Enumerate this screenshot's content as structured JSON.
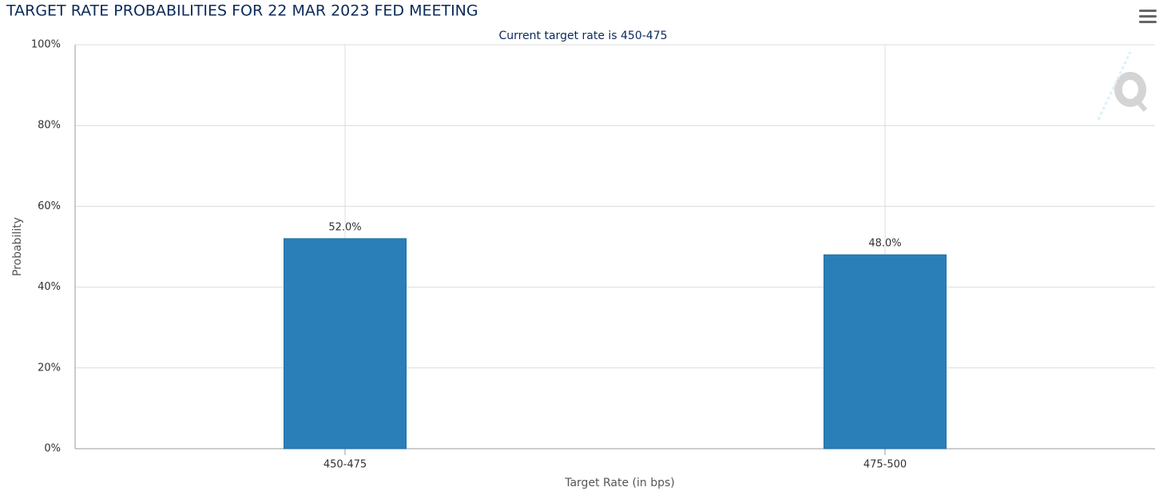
{
  "chart_data": {
    "type": "bar",
    "title": "TARGET RATE PROBABILITIES FOR 22 MAR 2023 FED MEETING",
    "subtitle": "Current target rate is 450-475",
    "x_label": "Target Rate (in bps)",
    "y_label": "Probability",
    "categories": [
      "450-475",
      "475-500"
    ],
    "values": [
      52,
      48
    ],
    "value_labels": [
      "52.0%",
      "48.0%"
    ],
    "color": "#2a7fb8",
    "ylim": [
      0,
      100
    ],
    "yticks": [
      {
        "value": 0,
        "label": "0%"
      },
      {
        "value": 20,
        "label": "20%"
      },
      {
        "value": 40,
        "label": "40%"
      },
      {
        "value": 60,
        "label": "60%"
      },
      {
        "value": 80,
        "label": "80%"
      },
      {
        "value": 100,
        "label": "100%"
      }
    ],
    "grid": true
  }
}
